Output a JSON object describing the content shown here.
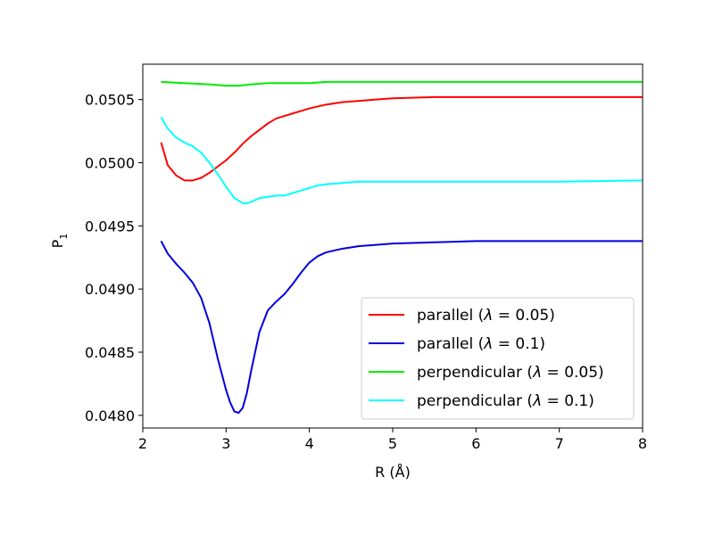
{
  "chart_data": {
    "type": "line",
    "title": "",
    "xlabel": "R (Å)",
    "ylabel_main": "P",
    "ylabel_sub": "1",
    "xlim": [
      2,
      8
    ],
    "ylim": [
      0.0479,
      0.05078
    ],
    "xticks": [
      2,
      3,
      4,
      5,
      6,
      7,
      8
    ],
    "xtick_labels": [
      "2",
      "3",
      "4",
      "5",
      "6",
      "7",
      "8"
    ],
    "yticks": [
      0.048,
      0.0485,
      0.049,
      0.0495,
      0.05,
      0.0505
    ],
    "ytick_labels": [
      "0.0480",
      "0.0485",
      "0.0490",
      "0.0495",
      "0.0500",
      "0.0505"
    ],
    "grid": false,
    "legend_position": "lower-right",
    "series": [
      {
        "name_prefix": "parallel (",
        "name_lambda": "λ",
        "name_value": " = 0.05)",
        "color": "#ff0000",
        "x": [
          2.22,
          2.3,
          2.4,
          2.5,
          2.6,
          2.7,
          2.8,
          2.9,
          3.0,
          3.1,
          3.2,
          3.3,
          3.4,
          3.5,
          3.6,
          3.7,
          3.8,
          3.9,
          4.0,
          4.2,
          4.4,
          4.6,
          4.8,
          5.0,
          5.5,
          6.0,
          7.0,
          8.0
        ],
        "y": [
          0.05016,
          0.04998,
          0.0499,
          0.04986,
          0.04986,
          0.04988,
          0.04992,
          0.04997,
          0.05002,
          0.05008,
          0.05015,
          0.05021,
          0.05026,
          0.05031,
          0.05035,
          0.05037,
          0.05039,
          0.05041,
          0.05043,
          0.05046,
          0.05048,
          0.05049,
          0.0505,
          0.05051,
          0.05052,
          0.05052,
          0.05052,
          0.05052
        ]
      },
      {
        "name_prefix": "parallel (",
        "name_lambda": "λ",
        "name_value": " = 0.1)",
        "color": "#0000dd",
        "x": [
          2.22,
          2.3,
          2.4,
          2.5,
          2.6,
          2.7,
          2.8,
          2.9,
          3.0,
          3.05,
          3.1,
          3.15,
          3.2,
          3.25,
          3.3,
          3.4,
          3.5,
          3.6,
          3.7,
          3.8,
          3.9,
          4.0,
          4.1,
          4.2,
          4.4,
          4.6,
          4.8,
          5.0,
          5.5,
          6.0,
          7.0,
          8.0
        ],
        "y": [
          0.04938,
          0.04928,
          0.0492,
          0.04913,
          0.04905,
          0.04893,
          0.04873,
          0.04845,
          0.0482,
          0.0481,
          0.04803,
          0.04802,
          0.04806,
          0.04818,
          0.04835,
          0.04866,
          0.04883,
          0.0489,
          0.04896,
          0.04904,
          0.04913,
          0.04921,
          0.04926,
          0.04929,
          0.04932,
          0.04934,
          0.04935,
          0.04936,
          0.04937,
          0.04938,
          0.04938,
          0.04938
        ]
      },
      {
        "name_prefix": "perpendicular (",
        "name_lambda": "λ",
        "name_value": " = 0.05)",
        "color": "#00ee00",
        "x": [
          2.22,
          2.5,
          2.8,
          3.0,
          3.15,
          3.3,
          3.5,
          3.8,
          4.0,
          4.2,
          4.5,
          5.0,
          6.0,
          7.0,
          8.0
        ],
        "y": [
          0.05064,
          0.05063,
          0.05062,
          0.05061,
          0.05061,
          0.05062,
          0.05063,
          0.05063,
          0.05063,
          0.05064,
          0.05064,
          0.05064,
          0.05064,
          0.05064,
          0.05064
        ]
      },
      {
        "name_prefix": "perpendicular (",
        "name_lambda": "λ",
        "name_value": " = 0.1)",
        "color": "#00ffff",
        "x": [
          2.22,
          2.3,
          2.4,
          2.5,
          2.6,
          2.7,
          2.8,
          2.9,
          3.0,
          3.1,
          3.2,
          3.25,
          3.3,
          3.4,
          3.5,
          3.6,
          3.7,
          3.8,
          3.9,
          4.0,
          4.1,
          4.2,
          4.4,
          4.6,
          5.0,
          6.0,
          7.0,
          8.0
        ],
        "y": [
          0.05036,
          0.05027,
          0.0502,
          0.05016,
          0.05013,
          0.05008,
          0.05,
          0.04991,
          0.04981,
          0.04972,
          0.04968,
          0.04968,
          0.04969,
          0.04972,
          0.04973,
          0.04974,
          0.04974,
          0.04976,
          0.04978,
          0.0498,
          0.04982,
          0.04983,
          0.04984,
          0.04985,
          0.04985,
          0.04985,
          0.04985,
          0.04986
        ]
      }
    ]
  }
}
